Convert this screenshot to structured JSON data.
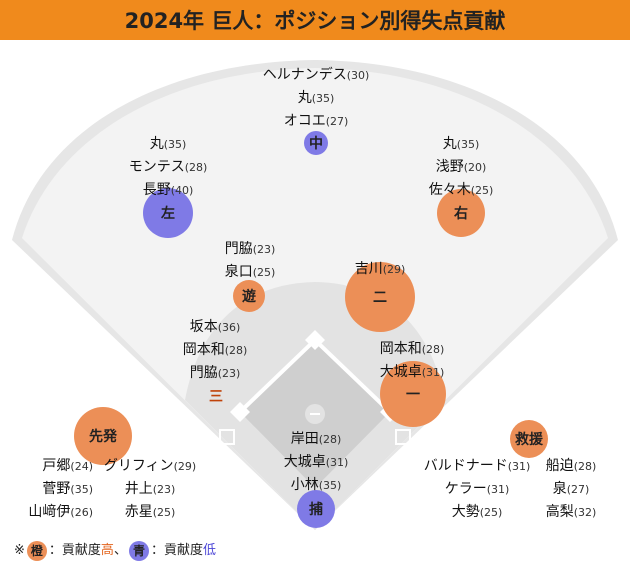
{
  "title": "2024年 巨人：ポジション別得失点貢献",
  "legend": {
    "prefix": "※",
    "orange_chip": "橙",
    "sep1": "：貢献度",
    "high": "高",
    "comma": "、",
    "blue_chip": "青",
    "sep2": "：貢献度",
    "low": "低"
  },
  "colors": {
    "orange": "#ec8f57",
    "blue": "#7f7ae6",
    "header": "#f08a1c"
  },
  "positions": {
    "cf": {
      "label": "中",
      "level": "low",
      "players": [
        [
          "ヘルナンデス",
          "(30)"
        ],
        [
          "丸",
          "(35)"
        ],
        [
          "オコエ",
          "(27)"
        ]
      ]
    },
    "lf": {
      "label": "左",
      "level": "low",
      "players": [
        [
          "丸",
          "(35)"
        ],
        [
          "モンテス",
          "(28)"
        ],
        [
          "長野",
          "(40)"
        ]
      ]
    },
    "rf": {
      "label": "右",
      "level": "high",
      "players": [
        [
          "丸",
          "(35)"
        ],
        [
          "浅野",
          "(20)"
        ],
        [
          "佐々木",
          "(25)"
        ]
      ]
    },
    "ss": {
      "label": "遊",
      "level": "high",
      "players": [
        [
          "門脇",
          "(23)"
        ],
        [
          "泉口",
          "(25)"
        ]
      ]
    },
    "b2": {
      "label": "二",
      "level": "high",
      "players": [
        [
          "吉川",
          "(29)"
        ]
      ]
    },
    "b3": {
      "label": "三",
      "level": "high",
      "players": [
        [
          "坂本",
          "(36)"
        ],
        [
          "岡本和",
          "(28)"
        ],
        [
          "門脇",
          "(23)"
        ]
      ]
    },
    "b1": {
      "label": "一",
      "level": "high",
      "players": [
        [
          "岡本和",
          "(28)"
        ],
        [
          "大城卓",
          "(31)"
        ]
      ]
    },
    "c": {
      "label": "捕",
      "level": "low",
      "players": [
        [
          "岸田",
          "(28)"
        ],
        [
          "大城卓",
          "(31)"
        ],
        [
          "小林",
          "(35)"
        ]
      ]
    },
    "sp": {
      "label": "先発",
      "level": "high",
      "players": [
        [
          "戸郷",
          "(24)"
        ],
        [
          "グリフィン",
          "(29)"
        ],
        [
          "菅野",
          "(35)"
        ],
        [
          "井上",
          "(23)"
        ],
        [
          "山﨑伊",
          "(26)"
        ],
        [
          "赤星",
          "(25)"
        ]
      ]
    },
    "rp": {
      "label": "救援",
      "level": "high",
      "players": [
        [
          "バルドナード",
          "(31)"
        ],
        [
          "船迫",
          "(28)"
        ],
        [
          "ケラー",
          "(31)"
        ],
        [
          "泉",
          "(27)"
        ],
        [
          "大勢",
          "(25)"
        ],
        [
          "高梨",
          "(32)"
        ]
      ]
    }
  }
}
